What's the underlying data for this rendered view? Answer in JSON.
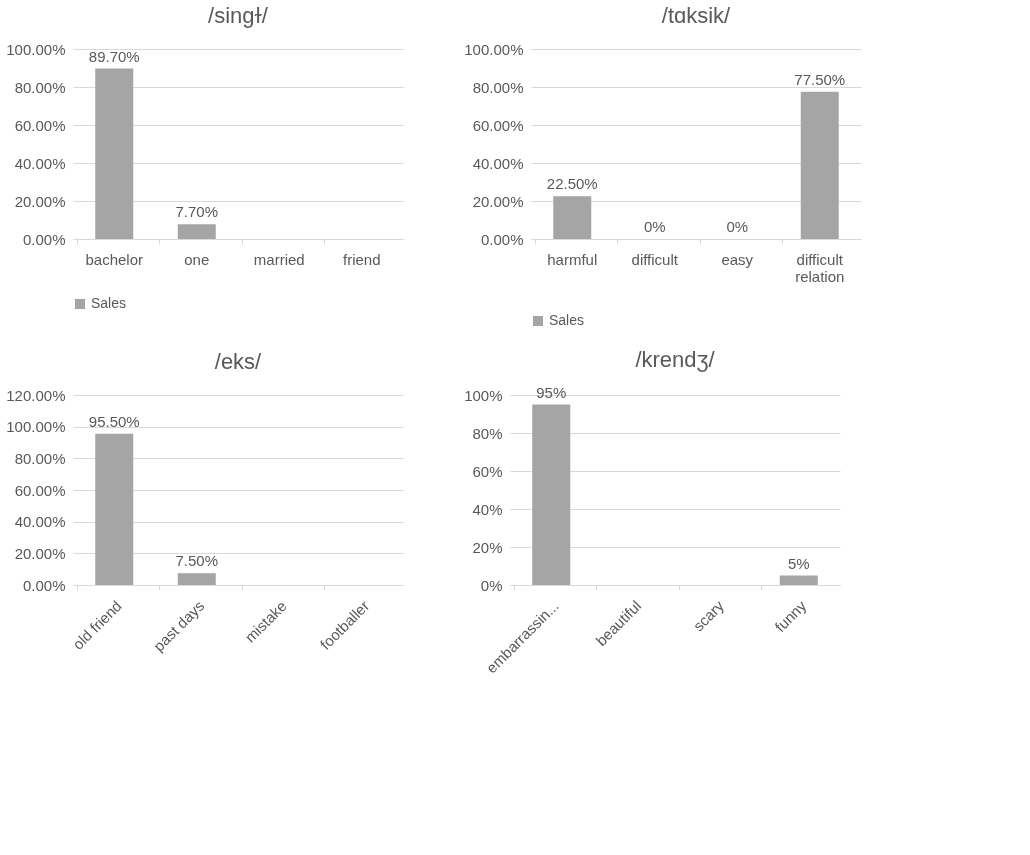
{
  "chart_data": [
    {
      "type": "bar",
      "title": "/singɫ/",
      "categories": [
        "bachelor",
        "one",
        "married",
        "friend"
      ],
      "series": [
        {
          "name": "Sales",
          "color": "#a5a5a5",
          "values": [
            89.7,
            7.7,
            0,
            0
          ],
          "value_labels": [
            "89.70%",
            "7.70%",
            null,
            null
          ]
        }
      ],
      "ylim": [
        0,
        100
      ],
      "yticks": [
        {
          "value": 0,
          "label": "0.00%"
        },
        {
          "value": 20,
          "label": "20.00%"
        },
        {
          "value": 40,
          "label": "40.00%"
        },
        {
          "value": 60,
          "label": "60.00%"
        },
        {
          "value": 80,
          "label": "80.00%"
        },
        {
          "value": 100,
          "label": "100.00%"
        }
      ],
      "grid": "y",
      "legend": "bottom"
    },
    {
      "type": "bar",
      "title": "/tɑksik/",
      "categories": [
        "harmful",
        "difficult",
        "easy",
        "difficult relation"
      ],
      "series": [
        {
          "name": "Sales",
          "color": "#a5a5a5",
          "values": [
            22.5,
            0,
            0,
            77.5
          ],
          "value_labels": [
            "22.50%",
            "0%",
            "0%",
            "77.50%"
          ]
        }
      ],
      "ylim": [
        0,
        100
      ],
      "yticks": [
        {
          "value": 0,
          "label": "0.00%"
        },
        {
          "value": 20,
          "label": "20.00%"
        },
        {
          "value": 40,
          "label": "40.00%"
        },
        {
          "value": 60,
          "label": "60.00%"
        },
        {
          "value": 80,
          "label": "80.00%"
        },
        {
          "value": 100,
          "label": "100.00%"
        }
      ],
      "grid": "y",
      "legend": "bottom"
    },
    {
      "type": "bar",
      "title": "/eks/",
      "categories": [
        "old friend",
        "past days",
        "mistake",
        "footballer"
      ],
      "series": [
        {
          "color": "#a5a5a5",
          "values": [
            95.5,
            7.5,
            0,
            0
          ],
          "value_labels": [
            "95.50%",
            "7.50%",
            null,
            null
          ]
        }
      ],
      "ylim": [
        0,
        120
      ],
      "yticks": [
        {
          "value": 0,
          "label": "0.00%"
        },
        {
          "value": 20,
          "label": "20.00%"
        },
        {
          "value": 40,
          "label": "40.00%"
        },
        {
          "value": 60,
          "label": "60.00%"
        },
        {
          "value": 80,
          "label": "80.00%"
        },
        {
          "value": 100,
          "label": "100.00%"
        },
        {
          "value": 120,
          "label": "120.00%"
        }
      ],
      "grid": "y",
      "legend": false
    },
    {
      "type": "bar",
      "title": "/krendʒ/",
      "categories": [
        "embarrassin...",
        "beautiful",
        "scary",
        "funny"
      ],
      "series": [
        {
          "color": "#a5a5a5",
          "values": [
            95,
            0,
            0,
            5
          ],
          "value_labels": [
            "95%",
            null,
            null,
            "5%"
          ]
        }
      ],
      "ylim": [
        0,
        100
      ],
      "yticks": [
        {
          "value": 0,
          "label": "0%"
        },
        {
          "value": 20,
          "label": "20%"
        },
        {
          "value": 40,
          "label": "40%"
        },
        {
          "value": 60,
          "label": "60%"
        },
        {
          "value": 80,
          "label": "80%"
        },
        {
          "value": 100,
          "label": "100%"
        }
      ],
      "grid": "y",
      "legend": false
    }
  ]
}
